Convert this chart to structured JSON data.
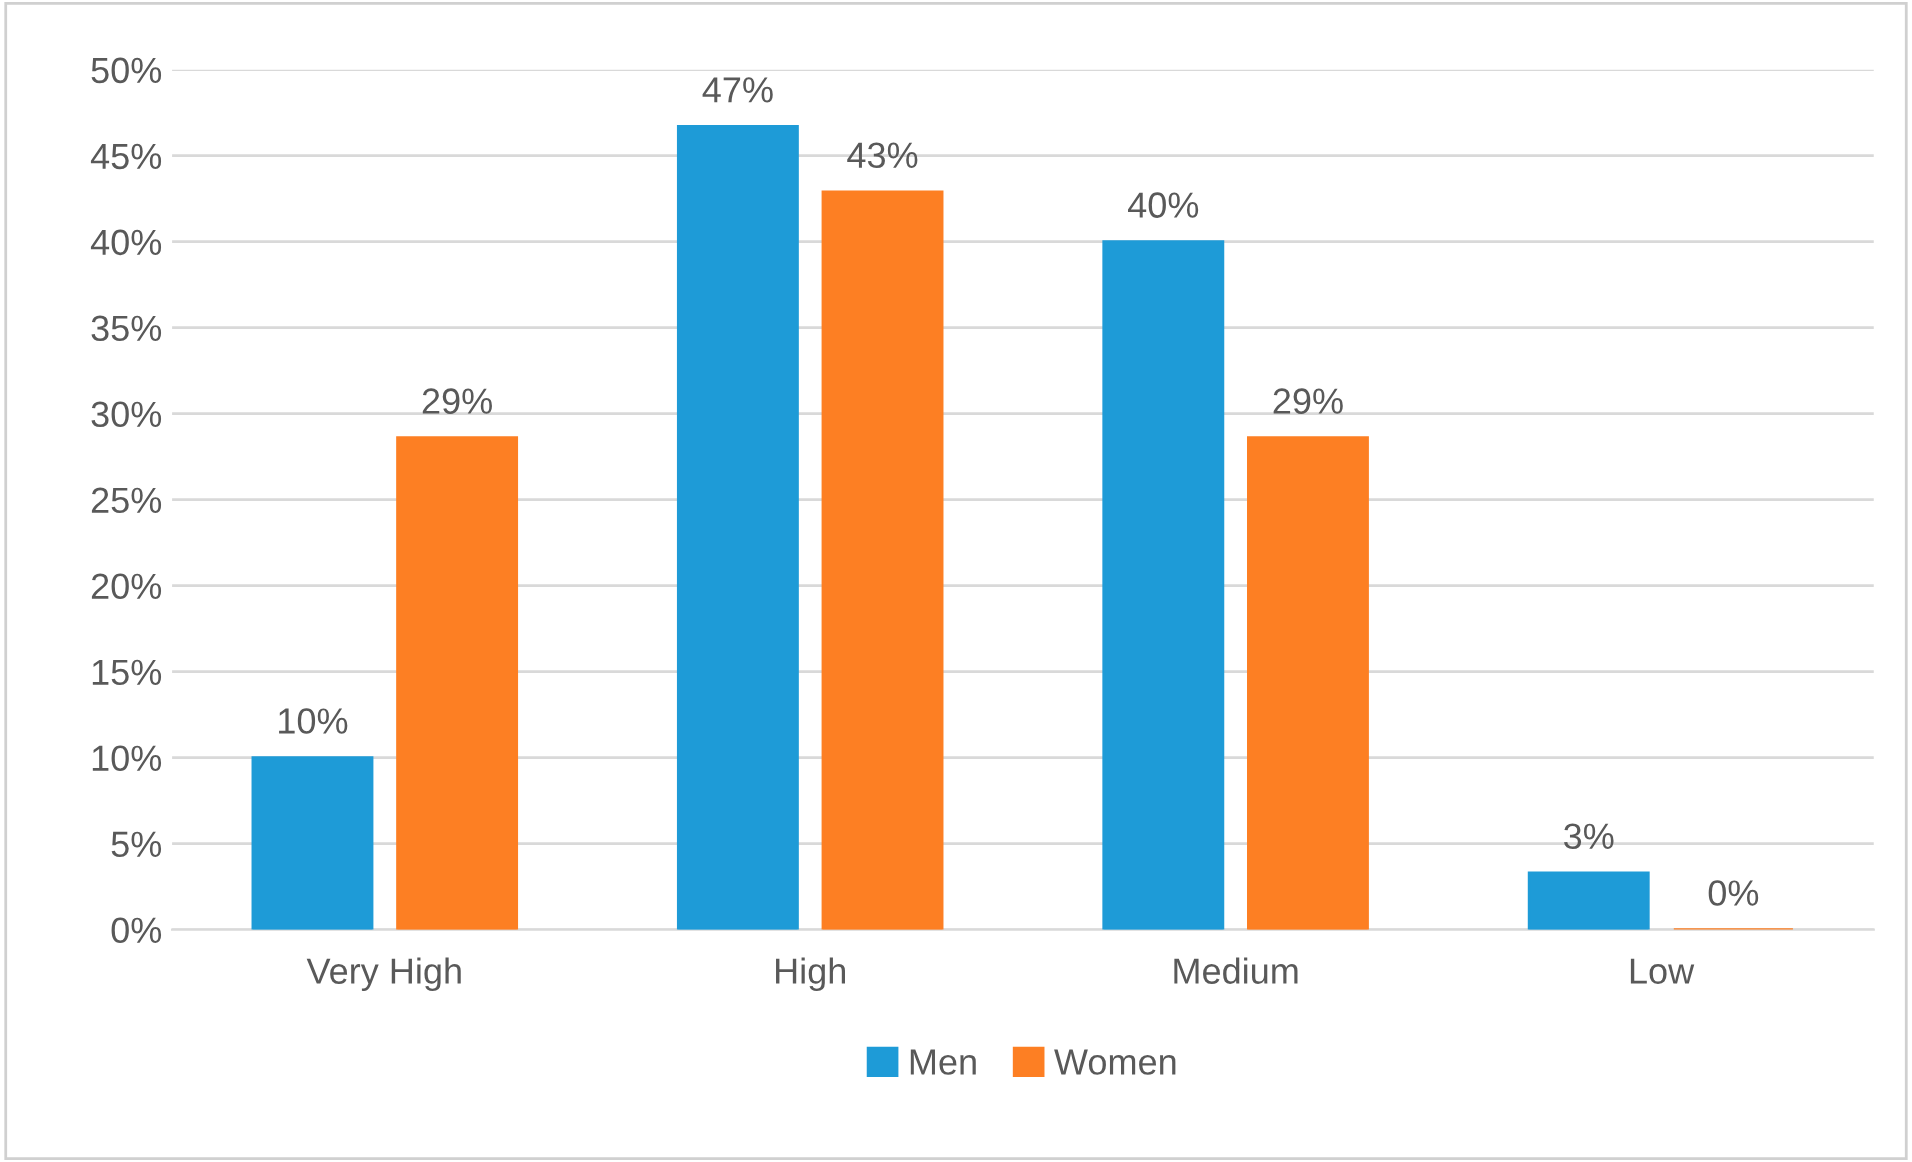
{
  "chart_data": {
    "type": "bar",
    "categories": [
      "Very High",
      "High",
      "Medium",
      "Low"
    ],
    "series": [
      {
        "name": "Men",
        "color": "#1e9bd7",
        "values": [
          10,
          46.7,
          40,
          3.3
        ],
        "value_labels": [
          "10%",
          "47%",
          "40%",
          "3%"
        ]
      },
      {
        "name": "Women",
        "color": "#fd7f23",
        "values": [
          28.6,
          42.9,
          28.6,
          0
        ],
        "value_labels": [
          "29%",
          "43%",
          "29%",
          "0%"
        ]
      }
    ],
    "ylim": [
      0,
      50
    ],
    "yticks": [
      {
        "value": 0,
        "label": "0%"
      },
      {
        "value": 5,
        "label": "5%"
      },
      {
        "value": 10,
        "label": "10%"
      },
      {
        "value": 15,
        "label": "15%"
      },
      {
        "value": 20,
        "label": "20%"
      },
      {
        "value": 25,
        "label": "25%"
      },
      {
        "value": 30,
        "label": "30%"
      },
      {
        "value": 35,
        "label": "35%"
      },
      {
        "value": 40,
        "label": "40%"
      },
      {
        "value": 45,
        "label": "45%"
      },
      {
        "value": 50,
        "label": "50%"
      }
    ],
    "grid": "y",
    "legend": "bottom"
  }
}
